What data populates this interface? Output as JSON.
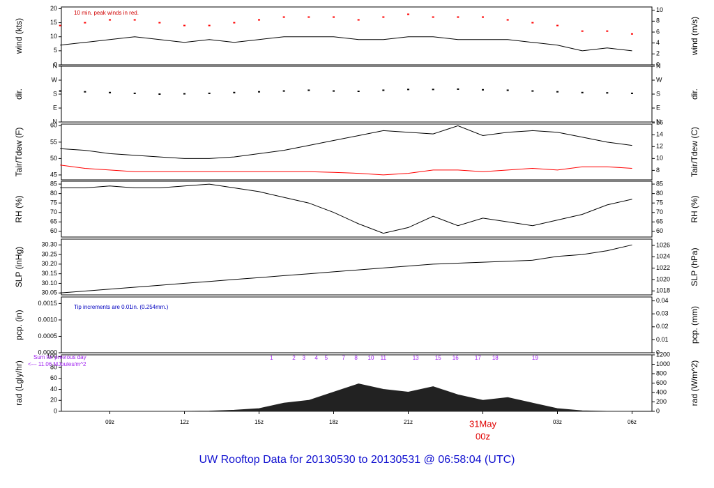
{
  "title": "UW Rooftop Data for 20130530  to  20130531 @ 06:58:04  (UTC)",
  "chart_data": [
    {
      "type": "line",
      "ylabel": "wind (kts)",
      "y2label": "wind (m/s)",
      "annotation": "10 min. peak winds in red.",
      "xlim": [
        7.05,
        30.8
      ],
      "x": [
        7,
        8,
        9,
        10,
        11,
        12,
        13,
        14,
        15,
        16,
        17,
        18,
        19,
        20,
        21,
        22,
        23,
        24,
        25,
        26,
        27,
        28,
        29,
        30
      ],
      "ylim": [
        0,
        20.6
      ],
      "yticks": [
        0,
        5,
        10,
        15,
        20
      ],
      "y2lim": [
        0,
        10.6
      ],
      "y2ticks": [
        0,
        2,
        4,
        6,
        8,
        10
      ],
      "series": [
        {
          "type": "line",
          "color": "#000000",
          "values": [
            7,
            8,
            9,
            10,
            9,
            8,
            9,
            8,
            9,
            10,
            10,
            10,
            9,
            9,
            10,
            10,
            9,
            9,
            9,
            8,
            7,
            5,
            6,
            5
          ]
        },
        {
          "type": "scatter",
          "color": "#ff0000",
          "values": [
            14,
            15,
            16,
            16,
            15,
            14,
            14,
            15,
            16,
            17,
            17,
            17,
            16,
            17,
            18,
            17,
            17,
            17,
            16,
            15,
            14,
            12,
            12,
            11
          ]
        }
      ]
    },
    {
      "type": "scatter",
      "ylabel": "dir.",
      "y2label": "dir.",
      "xlim": [
        7.05,
        30.8
      ],
      "x": [
        7,
        8,
        9,
        10,
        11,
        12,
        13,
        14,
        15,
        16,
        17,
        18,
        19,
        20,
        21,
        22,
        23,
        24,
        25,
        26,
        27,
        28,
        29,
        30
      ],
      "ylim": [
        0,
        360
      ],
      "yticks": [
        {
          "value": 0,
          "label": "N"
        },
        {
          "value": 90,
          "label": "E"
        },
        {
          "value": 180,
          "label": "S"
        },
        {
          "value": 270,
          "label": "W"
        },
        {
          "value": 360,
          "label": "N"
        }
      ],
      "y2lim": [
        0,
        360
      ],
      "y2ticks": [
        {
          "value": 0,
          "label": "N"
        },
        {
          "value": 90,
          "label": "E"
        },
        {
          "value": 180,
          "label": "S"
        },
        {
          "value": 270,
          "label": "W"
        },
        {
          "value": 360,
          "label": "N"
        }
      ],
      "series": [
        {
          "type": "scatter",
          "color": "#000000",
          "values": [
            200,
            195,
            190,
            185,
            180,
            182,
            185,
            190,
            195,
            200,
            205,
            200,
            198,
            205,
            210,
            210,
            212,
            208,
            205,
            200,
            195,
            190,
            188,
            185
          ]
        }
      ]
    },
    {
      "type": "line",
      "ylabel": "Tair/Tdew (F)",
      "y2label": "Tair/Tdew (C)",
      "xlim": [
        7.05,
        30.8
      ],
      "x": [
        7,
        8,
        9,
        10,
        11,
        12,
        13,
        14,
        15,
        16,
        17,
        18,
        19,
        20,
        21,
        22,
        23,
        24,
        25,
        26,
        27,
        28,
        29,
        30
      ],
      "ylim": [
        43.5,
        60.5
      ],
      "yticks": [
        45,
        50,
        55,
        60
      ],
      "y2lim": [
        6.4,
        15.8
      ],
      "y2ticks": [
        8,
        10,
        12,
        14,
        16
      ],
      "series": [
        {
          "type": "line",
          "color": "#000000",
          "values": [
            53,
            52.5,
            51.5,
            51,
            50.5,
            50,
            50,
            50.5,
            51.5,
            52.5,
            54,
            55.5,
            57,
            58.5,
            58,
            57.5,
            60,
            57,
            58,
            58.5,
            58,
            56.5,
            55,
            54
          ]
        },
        {
          "type": "line",
          "color": "#ff0000",
          "values": [
            48,
            47,
            46.5,
            46,
            46,
            46,
            46,
            46,
            46,
            46,
            46,
            45.8,
            45.5,
            45,
            45.5,
            46.5,
            46.5,
            46,
            46.5,
            47,
            46.5,
            47.5,
            47.5,
            47
          ]
        }
      ]
    },
    {
      "type": "line",
      "ylabel": "RH (%)",
      "y2label": "RH (%)",
      "xlim": [
        7.05,
        30.8
      ],
      "x": [
        7,
        8,
        9,
        10,
        11,
        12,
        13,
        14,
        15,
        16,
        17,
        18,
        19,
        20,
        21,
        22,
        23,
        24,
        25,
        26,
        27,
        28,
        29,
        30
      ],
      "ylim": [
        57,
        86.5
      ],
      "yticks": [
        60,
        65,
        70,
        75,
        80,
        85
      ],
      "y2lim": [
        57,
        86.5
      ],
      "y2ticks": [
        60,
        65,
        70,
        75,
        80,
        85
      ],
      "series": [
        {
          "type": "line",
          "color": "#000000",
          "values": [
            83,
            83,
            84,
            83,
            83,
            84,
            85,
            83,
            81,
            78,
            75,
            70,
            64,
            59,
            62,
            68,
            63,
            67,
            65,
            63,
            66,
            69,
            74,
            77
          ]
        }
      ]
    },
    {
      "type": "line",
      "ylabel": "SLP (inHg)",
      "y2label": "SLP (hPa)",
      "xlim": [
        7.05,
        30.8
      ],
      "x": [
        7,
        8,
        9,
        10,
        11,
        12,
        13,
        14,
        15,
        16,
        17,
        18,
        19,
        20,
        21,
        22,
        23,
        24,
        25,
        26,
        27,
        28,
        29,
        30
      ],
      "ylim": [
        30.04,
        30.33
      ],
      "yticks": [
        30.05,
        {
          "value": 30.1,
          "label": "30.10"
        },
        30.15,
        {
          "value": 30.2,
          "label": "30.20"
        },
        30.25,
        {
          "value": 30.3,
          "label": "30.30"
        }
      ],
      "y2lim": [
        1017.3,
        1027.1
      ],
      "y2ticks": [
        1018,
        1020,
        1022,
        1024,
        1026
      ],
      "series": [
        {
          "type": "line",
          "color": "#000000",
          "values": [
            30.05,
            30.06,
            30.07,
            30.08,
            30.09,
            30.1,
            30.11,
            30.12,
            30.13,
            30.14,
            30.15,
            30.16,
            30.17,
            30.18,
            30.19,
            30.2,
            30.205,
            30.21,
            30.215,
            30.22,
            30.24,
            30.25,
            30.27,
            30.3
          ]
        }
      ]
    },
    {
      "type": "line",
      "ylabel": "pcp. (in)",
      "y2label": "pcp. (mm)",
      "annotation": "Tip increments are 0.01in. (0.254mm.)",
      "xlim": [
        7.05,
        30.8
      ],
      "x": [
        7,
        8,
        9,
        10,
        11,
        12,
        13,
        14,
        15,
        16,
        17,
        18,
        19,
        20,
        21,
        22,
        23,
        24,
        25,
        26,
        27,
        28,
        29,
        30
      ],
      "ylim": [
        0,
        0.0017
      ],
      "yticks": [
        {
          "value": 0,
          "label": "0.0000"
        },
        {
          "value": 0.0005,
          "label": "0.0005"
        },
        {
          "value": 0.001,
          "label": "0.0010"
        },
        0.0015
      ],
      "y2lim": [
        0,
        0.043
      ],
      "y2ticks": [
        0,
        0.01,
        0.02,
        0.03,
        0.04
      ],
      "series": [
        {
          "type": "line",
          "color": "#000000",
          "values": [
            0,
            0,
            0,
            0,
            0,
            0,
            0,
            0,
            0,
            0,
            0,
            0,
            0,
            0,
            0,
            0,
            0,
            0,
            0,
            0,
            0,
            0,
            0,
            0
          ]
        }
      ]
    },
    {
      "type": "area",
      "ylabel": "rad (Lgly/hr)",
      "y2label": "rad (W/m^2)",
      "annotations": [
        "Sum for previous day",
        "<--- 11.06 MJoules/m^2"
      ],
      "markers": [
        {
          "x": 15.5,
          "label": "1"
        },
        {
          "x": 16.4,
          "label": "2"
        },
        {
          "x": 16.8,
          "label": "3"
        },
        {
          "x": 17.3,
          "label": "4"
        },
        {
          "x": 17.7,
          "label": "5"
        },
        {
          "x": 18.4,
          "label": "7"
        },
        {
          "x": 18.9,
          "label": "8"
        },
        {
          "x": 19.5,
          "label": "10"
        },
        {
          "x": 20.0,
          "label": "11"
        },
        {
          "x": 21.3,
          "label": "13"
        },
        {
          "x": 22.2,
          "label": "15"
        },
        {
          "x": 22.9,
          "label": "16"
        },
        {
          "x": 23.8,
          "label": "17"
        },
        {
          "x": 24.5,
          "label": "18"
        },
        {
          "x": 26.1,
          "label": "19"
        }
      ],
      "xlim": [
        7.05,
        30.8
      ],
      "x": [
        7,
        8,
        9,
        10,
        11,
        12,
        13,
        14,
        15,
        16,
        17,
        18,
        19,
        20,
        21,
        22,
        23,
        24,
        25,
        26,
        27,
        28,
        29,
        30
      ],
      "ylim": [
        0,
        103
      ],
      "yticks": [
        0,
        20,
        40,
        60,
        80,
        100
      ],
      "y2lim": [
        0,
        1200
      ],
      "y2ticks": [
        0,
        200,
        400,
        600,
        800,
        1000,
        1200
      ],
      "xticks": [
        {
          "value": 9,
          "label": "09z"
        },
        {
          "value": 12,
          "label": "12z"
        },
        {
          "value": 15,
          "label": "15z"
        },
        {
          "value": 18,
          "label": "18z"
        },
        {
          "value": 21,
          "label": "21z"
        },
        {
          "value": 27,
          "label": "03z"
        },
        {
          "value": 30,
          "label": "06z"
        }
      ],
      "date_tick": {
        "value": 24,
        "label": "00z",
        "date": "31May"
      },
      "series": [
        {
          "type": "area",
          "color": "#222222",
          "values": [
            0,
            0,
            0,
            0,
            0,
            0,
            0.5,
            2,
            5,
            15,
            20,
            35,
            50,
            40,
            35,
            45,
            30,
            20,
            25,
            15,
            5,
            1,
            0,
            0
          ]
        }
      ]
    }
  ]
}
